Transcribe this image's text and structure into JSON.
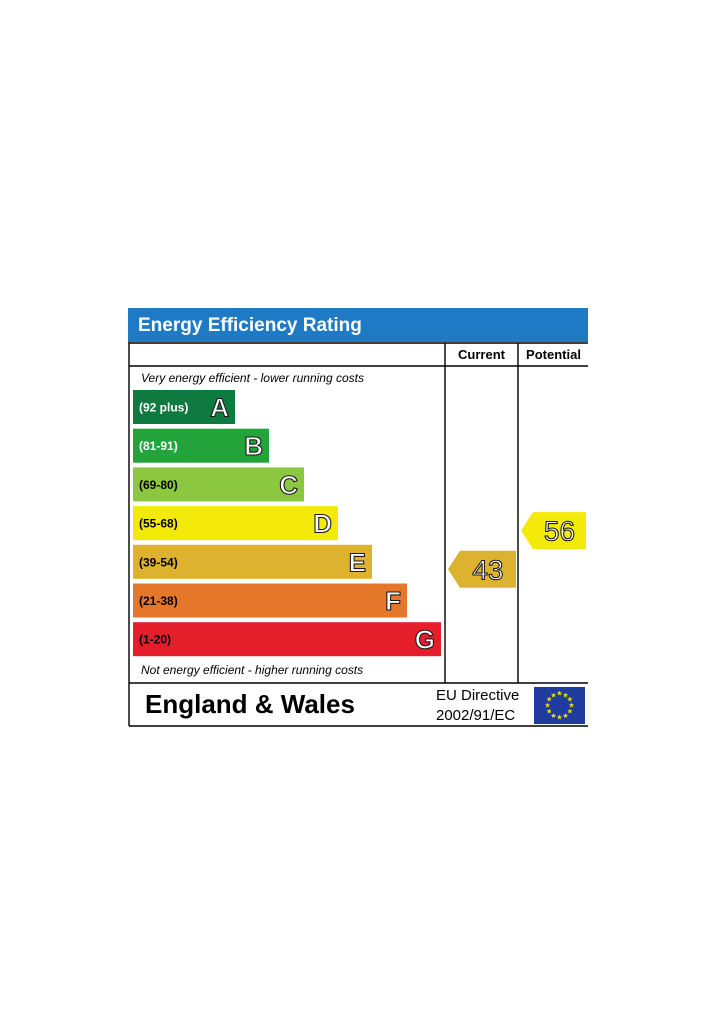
{
  "title": "Energy Efficiency Rating",
  "columns": {
    "current": "Current",
    "potential": "Potential"
  },
  "notes": {
    "top": "Very energy efficient - lower running costs",
    "bottom": "Not energy efficient - higher running costs"
  },
  "footer": {
    "region": "England & Wales",
    "directive_line1": "EU Directive",
    "directive_line2": "2002/91/EC"
  },
  "colors": {
    "title_bar": "#1f7ac6",
    "eu_flag": "#1d3c9e",
    "eu_stars": "#ffde00"
  },
  "chart_data": {
    "type": "bar",
    "bands": [
      {
        "letter": "A",
        "range": "(92 plus)",
        "color": "#0e7a3f",
        "range_text_color": "#ffffff"
      },
      {
        "letter": "B",
        "range": "(81-91)",
        "color": "#23a43b",
        "range_text_color": "#ffffff"
      },
      {
        "letter": "C",
        "range": "(69-80)",
        "color": "#8cc83f",
        "range_text_color": "#000000"
      },
      {
        "letter": "D",
        "range": "(55-68)",
        "color": "#f4ea0a",
        "range_text_color": "#000000"
      },
      {
        "letter": "E",
        "range": "(39-54)",
        "color": "#dcb22e",
        "range_text_color": "#000000"
      },
      {
        "letter": "F",
        "range": "(21-38)",
        "color": "#e5772b",
        "range_text_color": "#000000"
      },
      {
        "letter": "G",
        "range": "(1-20)",
        "color": "#e41e2b",
        "range_text_color": "#000000"
      }
    ],
    "current": {
      "value": 43,
      "band": "E",
      "color": "#dcb22e"
    },
    "potential": {
      "value": 56,
      "band": "D",
      "color": "#f4ea0a"
    }
  }
}
